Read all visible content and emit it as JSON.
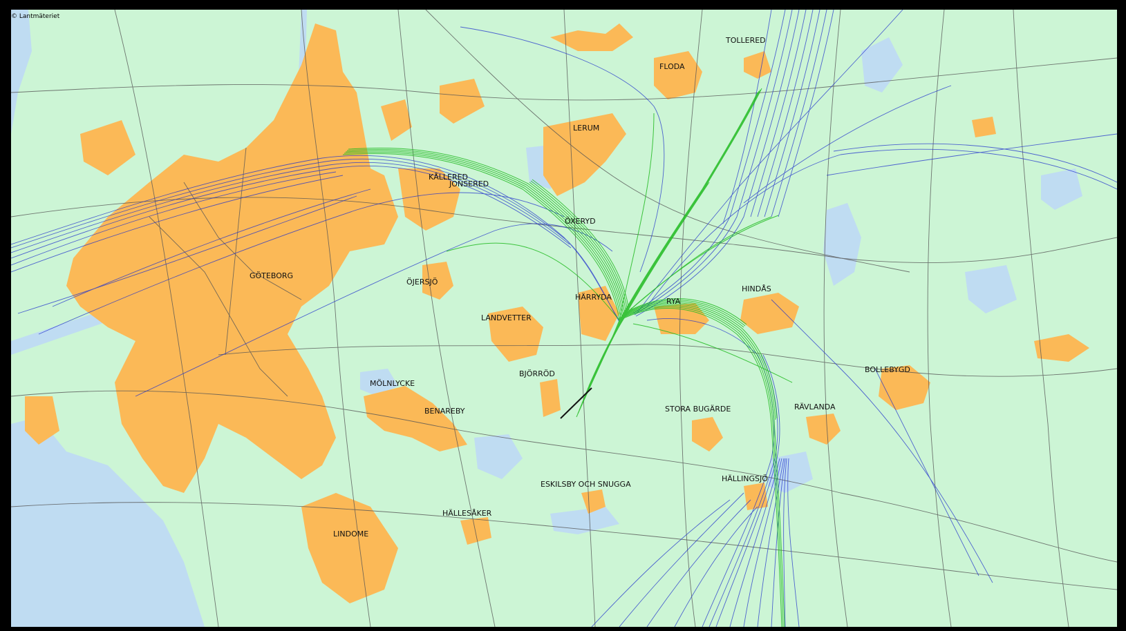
{
  "map": {
    "copyright": "© Lantmäteriet",
    "colors": {
      "land": "#ccf5d5",
      "water": "#bfdcf2",
      "urban": "#fbb957",
      "road": "#555555",
      "track_departure": "#22bb22",
      "track_arrival": "#2233cc",
      "runway": "#111111"
    },
    "places": [
      {
        "id": "tollered",
        "name": "TOLLERED"
      },
      {
        "id": "floda",
        "name": "FLODA"
      },
      {
        "id": "lerum",
        "name": "LERUM"
      },
      {
        "id": "kallered",
        "name": "KÅLLERED"
      },
      {
        "id": "jonsered",
        "name": "JONSERED"
      },
      {
        "id": "oxeryd",
        "name": "ÖXERYD"
      },
      {
        "id": "goteborg",
        "name": "GÖTEBORG"
      },
      {
        "id": "ojersjo",
        "name": "ÖJERSJÖ"
      },
      {
        "id": "harryda",
        "name": "HÄRRYDA"
      },
      {
        "id": "rya",
        "name": "RYA"
      },
      {
        "id": "hindas",
        "name": "HINDÅS"
      },
      {
        "id": "landvetter",
        "name": "LANDVETTER"
      },
      {
        "id": "bjorrod",
        "name": "BJÖRRÖD"
      },
      {
        "id": "molnlycke",
        "name": "MÖLNLYCKE"
      },
      {
        "id": "benareby",
        "name": "BENAREBY"
      },
      {
        "id": "bollebygd",
        "name": "BOLLEBYGD"
      },
      {
        "id": "stora_bugarde",
        "name": "STORA BUGÄRDE"
      },
      {
        "id": "ravlanda",
        "name": "RÄVLANDA"
      },
      {
        "id": "hallingsjo",
        "name": "HÄLLINGSJÖ"
      },
      {
        "id": "eskilsby",
        "name": "ESKILSBY OCH SNUGGA"
      },
      {
        "id": "hallesaker",
        "name": "HÄLLESÅKER"
      },
      {
        "id": "lindome",
        "name": "LINDOME"
      }
    ]
  }
}
